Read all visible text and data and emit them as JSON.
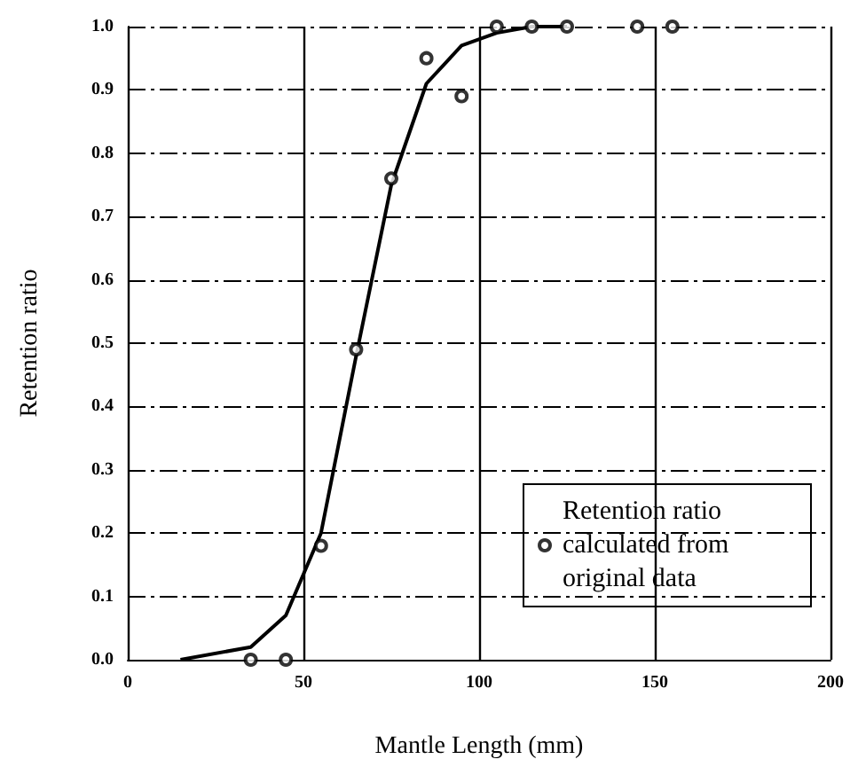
{
  "chart_data": {
    "type": "scatter",
    "xlabel": "Mantle Length (mm)",
    "ylabel": "Retention ratio",
    "series": [
      {
        "name": "Retention ratio calculated from original data",
        "color": "#000000",
        "marker": "circle",
        "x": [
          35,
          45,
          55,
          65,
          75,
          85,
          95,
          105,
          115,
          125,
          145,
          155
        ],
        "values": [
          0,
          0,
          0.18,
          0.49,
          0.76,
          0.95,
          0.89,
          1,
          1,
          1,
          1,
          1
        ]
      },
      {
        "type": "line",
        "color": "#000000",
        "marker": "none",
        "x": [
          15,
          35,
          45,
          55,
          65,
          75,
          85,
          95,
          105,
          115,
          125
        ],
        "values": [
          0,
          0.02,
          0.07,
          0.2,
          0.48,
          0.75,
          0.91,
          0.97,
          0.99,
          1,
          1
        ]
      }
    ],
    "xlim": [
      0,
      200
    ],
    "xticks": [
      0,
      50,
      100,
      150,
      200
    ],
    "ylim": [
      0,
      1
    ],
    "yticks": [
      {
        "value": 0,
        "label": "0.0"
      },
      {
        "value": 0.1,
        "label": "0.1"
      },
      {
        "value": 0.2,
        "label": "0.2"
      },
      {
        "value": 0.3,
        "label": "0.3"
      },
      {
        "value": 0.4,
        "label": "0.4"
      },
      {
        "value": 0.5,
        "label": "0.5"
      },
      {
        "value": 0.6,
        "label": "0.6"
      },
      {
        "value": 0.7,
        "label": "0.7"
      },
      {
        "value": 0.8,
        "label": "0.8"
      },
      {
        "value": 0.9,
        "label": "0.9"
      },
      {
        "value": 1,
        "label": "1.0"
      }
    ],
    "grid": true,
    "legend": "bottom right"
  }
}
